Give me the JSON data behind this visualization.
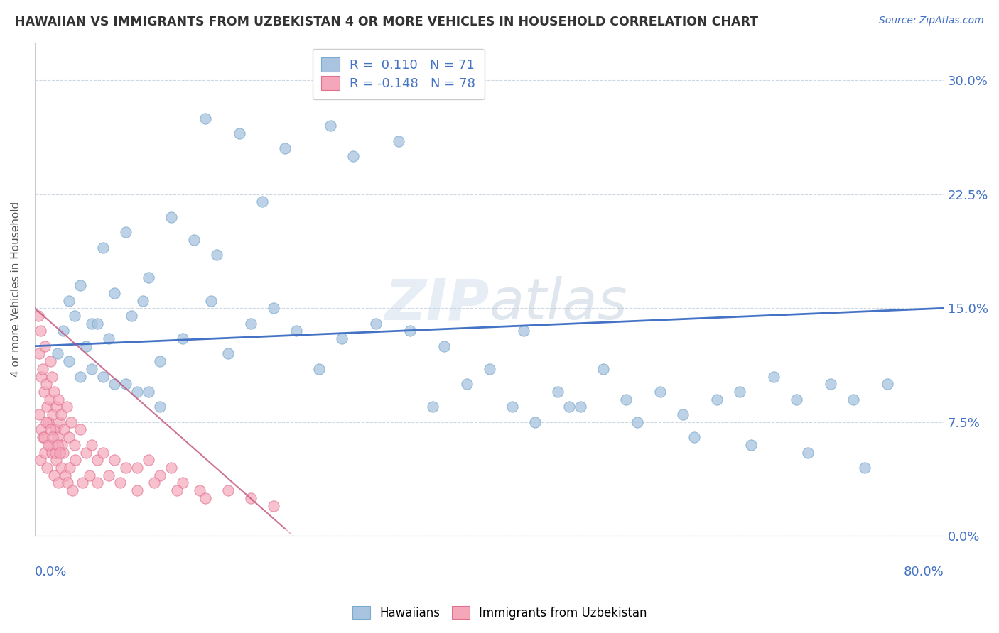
{
  "title": "HAWAIIAN VS IMMIGRANTS FROM UZBEKISTAN 4 OR MORE VEHICLES IN HOUSEHOLD CORRELATION CHART",
  "source": "Source: ZipAtlas.com",
  "ylabel": "4 or more Vehicles in Household",
  "ytick_vals": [
    0.0,
    7.5,
    15.0,
    22.5,
    30.0
  ],
  "xlim": [
    0.0,
    80.0
  ],
  "ylim": [
    0.0,
    32.5
  ],
  "hawaiian_color": "#a8c4e0",
  "hawaiian_edge_color": "#7aaace",
  "uzbekistan_color": "#f4a7b9",
  "uzbekistan_edge_color": "#e07090",
  "hawaiian_line_color": "#4472c4",
  "uzbekistan_line_color": "#c0507a",
  "watermark": "ZIPatlas",
  "background_color": "#ffffff",
  "grid_color": "#c8d4e0",
  "haw_line_x0": 0.0,
  "haw_line_x1": 80.0,
  "haw_line_y0": 12.5,
  "haw_line_y1": 15.0,
  "uzb_line_x0": 0.0,
  "uzb_line_x1": 22.0,
  "uzb_line_y0": 15.0,
  "uzb_line_y1": 0.5,
  "hawaiian_pts_x": [
    15.0,
    18.0,
    22.0,
    26.0,
    32.0,
    28.0,
    14.0,
    12.0,
    16.0,
    20.0,
    8.0,
    10.0,
    6.0,
    4.0,
    3.0,
    5.0,
    7.0,
    2.5,
    3.5,
    4.5,
    5.5,
    6.5,
    8.5,
    9.5,
    11.0,
    13.0,
    15.5,
    17.0,
    19.0,
    21.0,
    23.0,
    25.0,
    27.0,
    30.0,
    33.0,
    36.0,
    38.0,
    40.0,
    43.0,
    46.0,
    50.0,
    55.0,
    60.0,
    65.0,
    70.0,
    75.0,
    48.0,
    52.0,
    57.0,
    62.0,
    67.0,
    72.0,
    35.0,
    42.0,
    44.0,
    47.0,
    53.0,
    58.0,
    63.0,
    68.0,
    73.0,
    2.0,
    3.0,
    4.0,
    5.0,
    6.0,
    7.0,
    8.0,
    9.0,
    10.0,
    11.0
  ],
  "hawaiian_pts_y": [
    27.5,
    26.5,
    25.5,
    27.0,
    26.0,
    25.0,
    19.5,
    21.0,
    18.5,
    22.0,
    20.0,
    17.0,
    19.0,
    16.5,
    15.5,
    14.0,
    16.0,
    13.5,
    14.5,
    12.5,
    14.0,
    13.0,
    14.5,
    15.5,
    11.5,
    13.0,
    15.5,
    12.0,
    14.0,
    15.0,
    13.5,
    11.0,
    13.0,
    14.0,
    13.5,
    12.5,
    10.0,
    11.0,
    13.5,
    9.5,
    11.0,
    9.5,
    9.0,
    10.5,
    10.0,
    10.0,
    8.5,
    9.0,
    8.0,
    9.5,
    9.0,
    9.0,
    8.5,
    8.5,
    7.5,
    8.5,
    7.5,
    6.5,
    6.0,
    5.5,
    4.5,
    12.0,
    11.5,
    10.5,
    11.0,
    10.5,
    10.0,
    10.0,
    9.5,
    9.5,
    8.5
  ],
  "uzbekistan_pts_x": [
    0.3,
    0.4,
    0.5,
    0.6,
    0.7,
    0.8,
    0.9,
    1.0,
    1.1,
    1.2,
    1.3,
    1.4,
    1.5,
    1.6,
    1.7,
    1.8,
    1.9,
    2.0,
    2.1,
    2.2,
    2.3,
    2.4,
    2.6,
    2.8,
    3.0,
    3.2,
    3.5,
    4.0,
    4.5,
    5.0,
    5.5,
    6.0,
    7.0,
    8.0,
    9.0,
    10.0,
    11.0,
    12.0,
    13.0,
    14.5,
    0.5,
    0.7,
    0.9,
    1.1,
    1.3,
    1.5,
    1.7,
    1.9,
    2.1,
    2.3,
    2.5,
    2.7,
    2.9,
    3.1,
    3.3,
    3.6,
    4.2,
    4.8,
    5.5,
    6.5,
    7.5,
    9.0,
    10.5,
    12.5,
    15.0,
    17.0,
    19.0,
    21.0,
    0.4,
    0.6,
    0.8,
    1.0,
    1.2,
    1.4,
    1.6,
    1.8,
    2.0,
    2.2
  ],
  "uzbekistan_pts_y": [
    14.5,
    12.0,
    13.5,
    10.5,
    11.0,
    9.5,
    12.5,
    10.0,
    8.5,
    7.5,
    9.0,
    11.5,
    10.5,
    8.0,
    9.5,
    7.0,
    8.5,
    6.5,
    9.0,
    7.5,
    8.0,
    6.0,
    7.0,
    8.5,
    6.5,
    7.5,
    6.0,
    7.0,
    5.5,
    6.0,
    5.0,
    5.5,
    5.0,
    4.5,
    4.5,
    5.0,
    4.0,
    4.5,
    3.5,
    3.0,
    5.0,
    6.5,
    5.5,
    4.5,
    6.0,
    5.5,
    4.0,
    5.0,
    3.5,
    4.5,
    5.5,
    4.0,
    3.5,
    4.5,
    3.0,
    5.0,
    3.5,
    4.0,
    3.5,
    4.0,
    3.5,
    3.0,
    3.5,
    3.0,
    2.5,
    3.0,
    2.5,
    2.0,
    8.0,
    7.0,
    6.5,
    7.5,
    6.0,
    7.0,
    6.5,
    5.5,
    6.0,
    5.5
  ]
}
